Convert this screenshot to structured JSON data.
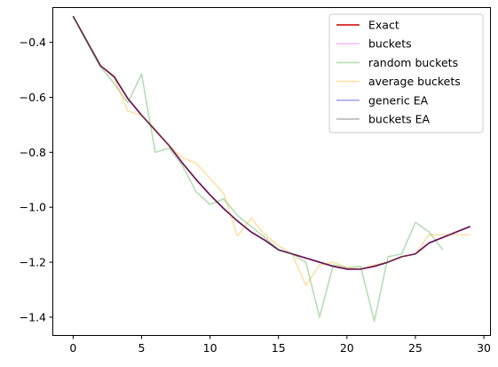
{
  "chart_data": {
    "type": "line",
    "title": "",
    "xlabel": "",
    "ylabel": "",
    "xlim": [
      -1.45,
      30.45
    ],
    "ylim": [
      -1.465,
      -0.275
    ],
    "xticks": [
      0,
      5,
      10,
      15,
      20,
      25,
      30
    ],
    "yticks": [
      -1.4,
      -1.2,
      -1.0,
      -0.8,
      -0.6,
      -0.4
    ],
    "xtick_labels": [
      "0",
      "5",
      "10",
      "15",
      "20",
      "25",
      "30"
    ],
    "ytick_labels": [
      "−1.4",
      "−1.2",
      "−1.0",
      "−0.8",
      "−0.6",
      "−0.4"
    ],
    "grid": false,
    "legend_position": "top-right",
    "series": [
      {
        "name": "Exact",
        "color": "#cc0000",
        "opacity": 1.0,
        "x": [
          0,
          1,
          2,
          3,
          4,
          5,
          6,
          7,
          8,
          9,
          10,
          11,
          12,
          13,
          14,
          15,
          16,
          17,
          18,
          19,
          20,
          21,
          22,
          23,
          24,
          25,
          26,
          27,
          28,
          29
        ],
        "y": [
          -0.305,
          -0.395,
          -0.485,
          -0.525,
          -0.605,
          -0.665,
          -0.72,
          -0.775,
          -0.84,
          -0.9,
          -0.955,
          -1.005,
          -1.05,
          -1.09,
          -1.12,
          -1.155,
          -1.17,
          -1.185,
          -1.2,
          -1.215,
          -1.225,
          -1.225,
          -1.215,
          -1.2,
          -1.18,
          -1.17,
          -1.13,
          -1.11,
          -1.09,
          -1.07
        ]
      },
      {
        "name": "buckets",
        "color": "#ee44ee",
        "opacity": 0.35,
        "x": [
          0,
          1,
          2,
          3,
          4,
          5,
          6,
          7,
          8,
          9,
          10,
          11,
          12,
          13,
          14,
          15,
          16,
          17,
          18,
          19,
          20,
          21,
          22,
          23,
          24,
          25,
          26,
          27,
          28,
          29
        ],
        "y": [
          -0.305,
          -0.395,
          -0.485,
          -0.525,
          -0.605,
          -0.665,
          -0.72,
          -0.775,
          -0.84,
          -0.9,
          -0.955,
          -1.005,
          -1.05,
          -1.09,
          -1.12,
          -1.155,
          -1.17,
          -1.185,
          -1.2,
          -1.215,
          -1.225,
          -1.225,
          -1.215,
          -1.2,
          -1.18,
          -1.17,
          -1.13,
          -1.11,
          -1.09,
          -1.07
        ]
      },
      {
        "name": "random buckets",
        "color": "#2ca02c",
        "opacity": 0.35,
        "x": [
          0,
          1,
          2,
          3,
          4,
          5,
          6,
          7,
          8,
          9,
          10,
          11,
          12,
          13,
          14,
          15,
          16,
          17,
          18,
          19,
          20,
          21,
          22,
          23,
          24,
          25,
          26,
          27
        ],
        "y": [
          -0.305,
          -0.4,
          -0.49,
          -0.55,
          -0.62,
          -0.515,
          -0.8,
          -0.785,
          -0.85,
          -0.945,
          -0.99,
          -0.97,
          -1.03,
          -1.07,
          -1.11,
          -1.155,
          -1.17,
          -1.2,
          -1.4,
          -1.21,
          -1.22,
          -1.215,
          -1.415,
          -1.18,
          -1.17,
          -1.055,
          -1.09,
          -1.155
        ]
      },
      {
        "name": "average buckets",
        "color": "#ffa500",
        "opacity": 0.35,
        "x": [
          0,
          1,
          2,
          3,
          4,
          5,
          6,
          7,
          8,
          9,
          10,
          11,
          12,
          13,
          14,
          15,
          16,
          17,
          18,
          19,
          20,
          21,
          22,
          23,
          24,
          25,
          26,
          27,
          28,
          29
        ],
        "y": [
          -0.305,
          -0.395,
          -0.485,
          -0.53,
          -0.65,
          -0.665,
          -0.715,
          -0.775,
          -0.82,
          -0.84,
          -0.895,
          -0.95,
          -1.105,
          -1.04,
          -1.1,
          -1.14,
          -1.17,
          -1.285,
          -1.21,
          -1.2,
          -1.22,
          -1.225,
          -1.21,
          -1.2,
          -1.18,
          -1.17,
          -1.1,
          -1.1,
          -1.1,
          -1.1
        ]
      },
      {
        "name": "generic EA",
        "color": "#0000cc",
        "opacity": 0.35,
        "x": [
          0,
          1,
          2,
          3,
          4,
          5,
          6,
          7,
          8,
          9,
          10,
          11,
          12,
          13,
          14,
          15,
          16,
          17,
          18,
          19,
          20,
          21,
          22,
          23,
          24,
          25,
          26,
          27,
          28,
          29
        ],
        "y": [
          -0.305,
          -0.395,
          -0.485,
          -0.525,
          -0.605,
          -0.665,
          -0.72,
          -0.775,
          -0.84,
          -0.9,
          -0.955,
          -1.005,
          -1.05,
          -1.09,
          -1.12,
          -1.155,
          -1.17,
          -1.185,
          -1.2,
          -1.215,
          -1.225,
          -1.225,
          -1.215,
          -1.2,
          -1.18,
          -1.17,
          -1.13,
          -1.11,
          -1.09,
          -1.07
        ]
      },
      {
        "name": "buckets EA",
        "color": "#222222",
        "opacity": 0.35,
        "x": [
          0,
          1,
          2,
          3,
          4,
          5,
          6,
          7,
          8,
          9,
          10,
          11,
          12,
          13,
          14,
          15,
          16,
          17,
          18,
          19,
          20,
          21,
          22,
          23,
          24,
          25,
          26,
          27,
          28,
          29
        ],
        "y": [
          -0.305,
          -0.395,
          -0.485,
          -0.525,
          -0.605,
          -0.665,
          -0.72,
          -0.775,
          -0.84,
          -0.9,
          -0.955,
          -1.005,
          -1.05,
          -1.09,
          -1.12,
          -1.155,
          -1.17,
          -1.185,
          -1.2,
          -1.215,
          -1.225,
          -1.225,
          -1.215,
          -1.2,
          -1.18,
          -1.17,
          -1.13,
          -1.11,
          -1.09,
          -1.07
        ]
      }
    ]
  }
}
